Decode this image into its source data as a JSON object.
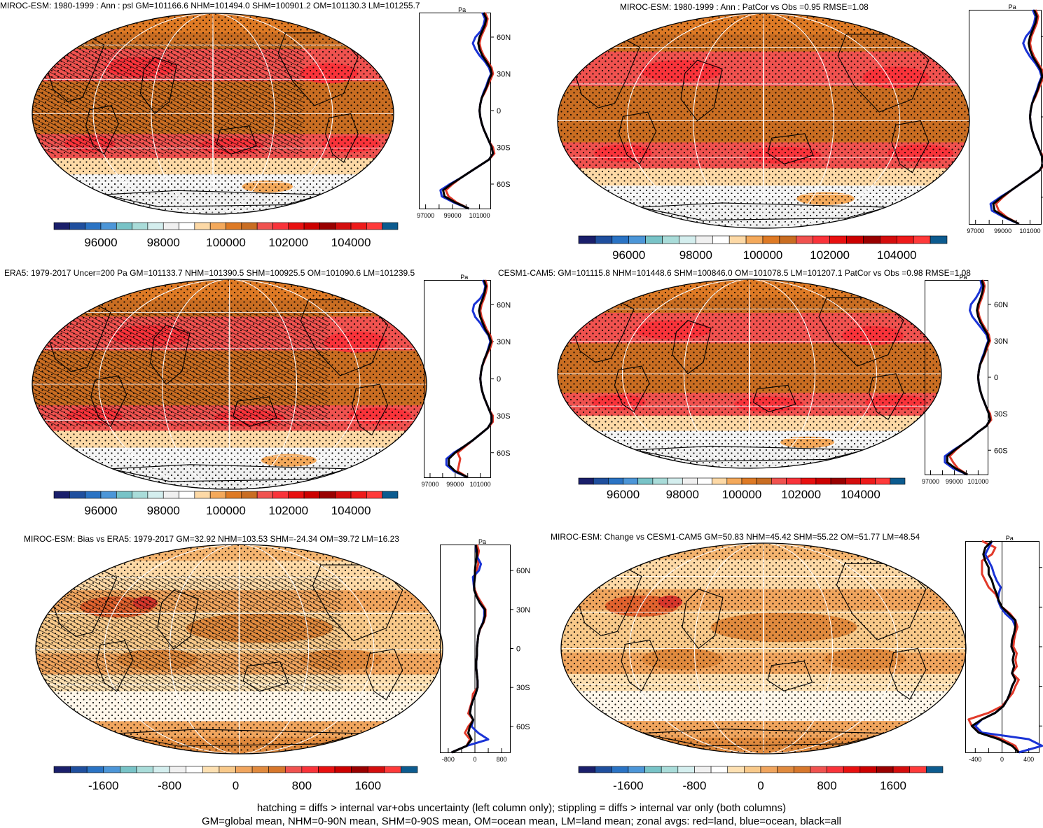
{
  "panels": [
    {
      "id": "p1",
      "title": "MIROC-ESM: 1980-1999 : Ann : psl GM=101166.6 NHM=101494.0 SHM=100901.2 OM=101130.3 LM=101255.7",
      "unit": "Pa",
      "lat_labels": [
        "60N",
        "30N",
        "0",
        "30S",
        "60S"
      ],
      "zonal_ticks": [
        "97000",
        "99000",
        "101000"
      ],
      "colorbar_labels": [
        "96000",
        "98000",
        "100000",
        "102000",
        "104000"
      ]
    },
    {
      "id": "p2",
      "title": "MIROC-ESM: 1980-1999 : Ann : PatCor vs Obs =0.95 RMSE=1.08",
      "unit": "Pa",
      "lat_labels": [
        "",
        "",
        "",
        "",
        ""
      ],
      "zonal_ticks": [
        "97000",
        "99000",
        "101000"
      ],
      "colorbar_labels": [
        "96000",
        "98000",
        "100000",
        "102000",
        "104000"
      ]
    },
    {
      "id": "p3",
      "title": "ERA5: 1979-2017 Uncer=200 Pa GM=101133.7 NHM=101390.5 SHM=100925.5 OM=101090.6 LM=101239.5",
      "unit": "Pa",
      "lat_labels": [
        "60N",
        "30N",
        "0",
        "30S",
        "60S"
      ],
      "zonal_ticks": [
        "97000",
        "99000",
        "101000"
      ],
      "colorbar_labels": [
        "96000",
        "98000",
        "100000",
        "102000",
        "104000"
      ]
    },
    {
      "id": "p4",
      "title": "CESM1-CAM5: GM=101115.8 NHM=101448.6 SHM=100846.0 OM=101078.5 LM=101207.1 PatCor vs Obs =0.98 RMSE=1.08",
      "unit": "Pa",
      "lat_labels": [
        "60N",
        "30N",
        "0",
        "30S",
        "60S"
      ],
      "zonal_ticks": [
        "97000",
        "99000",
        "101000"
      ],
      "colorbar_labels": [
        "96000",
        "98000",
        "100000",
        "102000",
        "104000"
      ]
    },
    {
      "id": "p5",
      "title": "MIROC-ESM: Bias vs ERA5: 1979-2017 GM=32.92 NHM=103.53 SHM=-24.34 OM=39.72 LM=16.23",
      "unit": "Pa",
      "lat_labels": [
        "60N",
        "30N",
        "0",
        "30S",
        "60S"
      ],
      "zonal_ticks": [
        "-800",
        "0",
        "800"
      ],
      "colorbar_labels": [
        "-1600",
        "-800",
        "0",
        "800",
        "1600"
      ]
    },
    {
      "id": "p6",
      "title": "MIROC-ESM: Change vs CESM1-CAM5 GM=50.83 NHM=45.42 SHM=55.22 OM=51.77 LM=48.54",
      "unit": "Pa",
      "lat_labels": [
        "",
        "",
        "",
        "",
        ""
      ],
      "zonal_ticks": [
        "-400",
        "0",
        "400"
      ],
      "colorbar_labels": [
        "-1600",
        "-800",
        "0",
        "800",
        "1600"
      ]
    }
  ],
  "footer": {
    "line1": "hatching = diffs > internal var+obs uncertainty (left column only); stippling = diffs > internal var only (both columns)",
    "line2": "GM=global mean, NHM=0-90N mean, SHM=0-90S mean, OM=ocean mean, LM=land mean; zonal avgs: red=land, blue=ocean, black=all"
  },
  "colors": {
    "abs_palette": [
      "#1a1f6b",
      "#1f4f9e",
      "#2a73c4",
      "#4c96d8",
      "#78c3c7",
      "#a9dcd9",
      "#d4eeee",
      "#f0f0f0",
      "#ffffff",
      "#fdd9a6",
      "#f4a95b",
      "#de7a25",
      "#c96d22",
      "#f0524f",
      "#f9333a",
      "#e81010",
      "#cc0000",
      "#990000",
      "#d40d0d",
      "#ee1a1a",
      "#ff3a3a",
      "#0c5b8f"
    ],
    "diff_palette": [
      "#1a1f6b",
      "#1f4f9e",
      "#2a73c4",
      "#4c96d8",
      "#78c3c7",
      "#a9dcd9",
      "#d4eeee",
      "#f0f0f0",
      "#ffffff",
      "#fde0b2",
      "#f8c98a",
      "#f0a55e",
      "#e08a3e",
      "#d7772c",
      "#f0524f",
      "#f9333a",
      "#e81010",
      "#cc0000",
      "#990000",
      "#d40d0d",
      "#ff3a3a",
      "#0c5b8f"
    ],
    "land": "#e23a2a",
    "ocean": "#1a33d6",
    "all": "#000000"
  },
  "chart_data": [
    {
      "type": "heatmap",
      "panel": "p1",
      "projection": "robinson",
      "field": "psl",
      "zonal_mean": {
        "lat": [
          -80,
          -75,
          -70,
          -65,
          -60,
          -55,
          -50,
          -45,
          -40,
          -35,
          -30,
          -25,
          -20,
          -15,
          -10,
          -5,
          0,
          5,
          10,
          15,
          20,
          25,
          30,
          35,
          40,
          45,
          50,
          55,
          60,
          65,
          70,
          75,
          80
        ],
        "all": [
          100200,
          99200,
          98400,
          98300,
          98900,
          99600,
          100300,
          101000,
          101700,
          102000,
          101900,
          101700,
          101500,
          101300,
          101150,
          101050,
          101000,
          101050,
          101150,
          101350,
          101550,
          101700,
          101900,
          101800,
          101500,
          101200,
          101000,
          100900,
          101000,
          101200,
          101400,
          101500,
          101300
        ],
        "land": [
          100200,
          99300,
          98700,
          98500,
          99000,
          99600,
          100300,
          101000,
          101700,
          102100,
          102000,
          101700,
          101500,
          101300,
          101150,
          101050,
          101000,
          101050,
          101150,
          101400,
          101600,
          101800,
          102000,
          101900,
          101600,
          101300,
          101100,
          101000,
          101100,
          101300,
          101500,
          101600,
          101400
        ],
        "ocean": [
          100200,
          99100,
          98200,
          98100,
          98800,
          99600,
          100300,
          101000,
          101700,
          102000,
          101900,
          101700,
          101500,
          101300,
          101150,
          101050,
          101000,
          101050,
          101150,
          101300,
          101500,
          101650,
          101850,
          101700,
          101400,
          101000,
          100700,
          100500,
          100700,
          101100,
          101300,
          101400,
          101200
        ]
      },
      "xlim": [
        96500,
        101800
      ]
    },
    {
      "type": "heatmap",
      "panel": "p2",
      "projection": "robinson",
      "field": "psl",
      "zonal_mean": {
        "lat": [
          -80,
          -75,
          -70,
          -65,
          -60,
          -55,
          -50,
          -45,
          -40,
          -35,
          -30,
          -25,
          -20,
          -15,
          -10,
          -5,
          0,
          5,
          10,
          15,
          20,
          25,
          30,
          35,
          40,
          45,
          50,
          55,
          60,
          65,
          70,
          75,
          80
        ],
        "all": [
          100200,
          99200,
          98400,
          98300,
          98900,
          99600,
          100300,
          101000,
          101700,
          102000,
          101900,
          101700,
          101500,
          101300,
          101150,
          101050,
          101000,
          101050,
          101150,
          101350,
          101550,
          101700,
          101900,
          101800,
          101500,
          101200,
          101000,
          100900,
          101000,
          101200,
          101400,
          101500,
          101300
        ],
        "land": [
          100200,
          99300,
          98700,
          98500,
          99000,
          99600,
          100300,
          101000,
          101700,
          102100,
          102000,
          101700,
          101500,
          101300,
          101150,
          101050,
          101000,
          101050,
          101150,
          101400,
          101600,
          101800,
          102000,
          101900,
          101600,
          101300,
          101100,
          101000,
          101100,
          101300,
          101500,
          101600,
          101400
        ],
        "ocean": [
          100200,
          99100,
          98200,
          98100,
          98800,
          99600,
          100300,
          101000,
          101700,
          102000,
          101900,
          101700,
          101500,
          101300,
          101150,
          101050,
          101000,
          101050,
          101150,
          101300,
          101500,
          101650,
          101850,
          101700,
          101400,
          101000,
          100700,
          100500,
          100700,
          101100,
          101300,
          101400,
          101200
        ]
      },
      "xlim": [
        96500,
        101800
      ]
    },
    {
      "type": "heatmap",
      "panel": "p3",
      "projection": "robinson",
      "field": "psl",
      "zonal_mean": {
        "lat": [
          -80,
          -75,
          -70,
          -65,
          -60,
          -55,
          -50,
          -45,
          -40,
          -35,
          -30,
          -25,
          -20,
          -15,
          -10,
          -5,
          0,
          5,
          10,
          15,
          20,
          25,
          30,
          35,
          40,
          45,
          50,
          55,
          60,
          65,
          70,
          75,
          80
        ],
        "all": [
          100000,
          99000,
          98500,
          98500,
          99000,
          99700,
          100400,
          101000,
          101600,
          101900,
          101900,
          101700,
          101500,
          101300,
          101150,
          101050,
          101000,
          101050,
          101150,
          101300,
          101500,
          101700,
          101850,
          101700,
          101400,
          101200,
          101000,
          100900,
          101000,
          101200,
          101350,
          101450,
          101300
        ],
        "land": [
          100000,
          99200,
          99300,
          99400,
          99200,
          99800,
          100400,
          101000,
          101600,
          102000,
          102000,
          101700,
          101500,
          101300,
          101150,
          101050,
          101000,
          101050,
          101150,
          101350,
          101550,
          101800,
          101950,
          101800,
          101500,
          101300,
          101100,
          101000,
          101100,
          101300,
          101450,
          101550,
          101400
        ],
        "ocean": [
          100000,
          98900,
          98300,
          98300,
          98900,
          99700,
          100400,
          101000,
          101600,
          101900,
          101900,
          101700,
          101500,
          101300,
          101150,
          101050,
          101000,
          101050,
          101150,
          101300,
          101500,
          101650,
          101800,
          101650,
          101300,
          101000,
          100600,
          100400,
          100500,
          101000,
          101300,
          101400,
          101200
        ]
      },
      "xlim": [
        96500,
        101800
      ]
    },
    {
      "type": "heatmap",
      "panel": "p4",
      "projection": "robinson",
      "field": "psl",
      "zonal_mean": {
        "lat": [
          -80,
          -75,
          -70,
          -65,
          -60,
          -55,
          -50,
          -45,
          -40,
          -35,
          -30,
          -25,
          -20,
          -15,
          -10,
          -5,
          0,
          5,
          10,
          15,
          20,
          25,
          30,
          35,
          40,
          45,
          50,
          55,
          60,
          65,
          70,
          75,
          80
        ],
        "all": [
          100100,
          99100,
          98400,
          98400,
          99000,
          99700,
          100400,
          101000,
          101700,
          102000,
          101900,
          101700,
          101500,
          101300,
          101150,
          101050,
          101000,
          101050,
          101150,
          101350,
          101550,
          101700,
          101900,
          101800,
          101500,
          101200,
          101000,
          100900,
          101000,
          101200,
          101350,
          101450,
          101300
        ],
        "land": [
          100100,
          99300,
          98900,
          98600,
          99100,
          99700,
          100400,
          101000,
          101700,
          102100,
          102000,
          101700,
          101500,
          101300,
          101150,
          101050,
          101000,
          101050,
          101150,
          101400,
          101600,
          101800,
          102000,
          101900,
          101600,
          101300,
          101100,
          101000,
          101100,
          101300,
          101450,
          101550,
          101400
        ],
        "ocean": [
          100100,
          98900,
          98200,
          98200,
          98900,
          99700,
          100400,
          101000,
          101700,
          102000,
          101900,
          101700,
          101500,
          101300,
          101150,
          101050,
          101000,
          101050,
          101150,
          101300,
          101500,
          101650,
          101850,
          101700,
          101300,
          100900,
          100500,
          100300,
          100400,
          100800,
          101100,
          101300,
          101200
        ]
      },
      "xlim": [
        96500,
        101800
      ]
    },
    {
      "type": "heatmap",
      "panel": "p5",
      "projection": "robinson",
      "field": "psl bias",
      "zonal_mean": {
        "lat": [
          -80,
          -75,
          -70,
          -65,
          -60,
          -55,
          -50,
          -45,
          -40,
          -35,
          -30,
          -25,
          -20,
          -15,
          -10,
          -5,
          0,
          5,
          10,
          15,
          20,
          25,
          30,
          35,
          40,
          45,
          50,
          55,
          60,
          65,
          70,
          75,
          80
        ],
        "all": [
          -700,
          -250,
          -100,
          -200,
          -150,
          -50,
          -150,
          -120,
          -60,
          20,
          80,
          80,
          60,
          40,
          40,
          60,
          60,
          80,
          100,
          150,
          250,
          300,
          300,
          150,
          50,
          -20,
          -20,
          0,
          0,
          20,
          50,
          60,
          20
        ],
        "land": [
          -700,
          -250,
          -150,
          -300,
          -200,
          -50,
          -200,
          -140,
          -80,
          -60,
          80,
          80,
          60,
          40,
          40,
          60,
          60,
          80,
          100,
          160,
          260,
          320,
          320,
          200,
          80,
          0,
          -40,
          0,
          50,
          100,
          80,
          120,
          60
        ],
        "ocean": [
          -700,
          -250,
          400,
          100,
          -100,
          -50,
          -150,
          -120,
          -60,
          20,
          80,
          80,
          60,
          40,
          40,
          60,
          60,
          80,
          100,
          150,
          240,
          280,
          280,
          150,
          50,
          -20,
          -40,
          -60,
          120,
          180,
          80,
          40,
          20
        ]
      },
      "xlim": [
        -1050,
        1050
      ]
    },
    {
      "type": "heatmap",
      "panel": "p6",
      "projection": "robinson",
      "field": "psl change",
      "zonal_mean": {
        "lat": [
          -80,
          -75,
          -70,
          -65,
          -60,
          -55,
          -50,
          -45,
          -40,
          -35,
          -30,
          -25,
          -20,
          -15,
          -10,
          -5,
          0,
          5,
          10,
          15,
          20,
          25,
          30,
          35,
          40,
          45,
          50,
          55,
          60,
          65,
          70,
          75,
          80
        ],
        "all": [
          250,
          150,
          -50,
          -350,
          -450,
          -300,
          -100,
          20,
          80,
          120,
          150,
          200,
          150,
          180,
          160,
          180,
          140,
          150,
          180,
          200,
          200,
          100,
          0,
          -50,
          -80,
          -120,
          -150,
          -200,
          -200,
          -250,
          -280,
          -250,
          -150
        ],
        "land": [
          250,
          200,
          0,
          -300,
          -450,
          -500,
          -200,
          0,
          80,
          160,
          200,
          250,
          150,
          220,
          200,
          220,
          170,
          180,
          200,
          230,
          200,
          120,
          0,
          -50,
          -100,
          -200,
          -250,
          -300,
          -300,
          -300,
          -150,
          -100,
          -300
        ],
        "ocean": [
          250,
          600,
          400,
          -300,
          -400,
          -300,
          -100,
          20,
          80,
          120,
          150,
          200,
          150,
          180,
          160,
          180,
          140,
          150,
          180,
          200,
          160,
          50,
          -20,
          -60,
          -50,
          -20,
          -80,
          -120,
          -150,
          -200,
          -250,
          -200,
          -150
        ]
      },
      "xlim": [
        -550,
        550
      ]
    }
  ]
}
